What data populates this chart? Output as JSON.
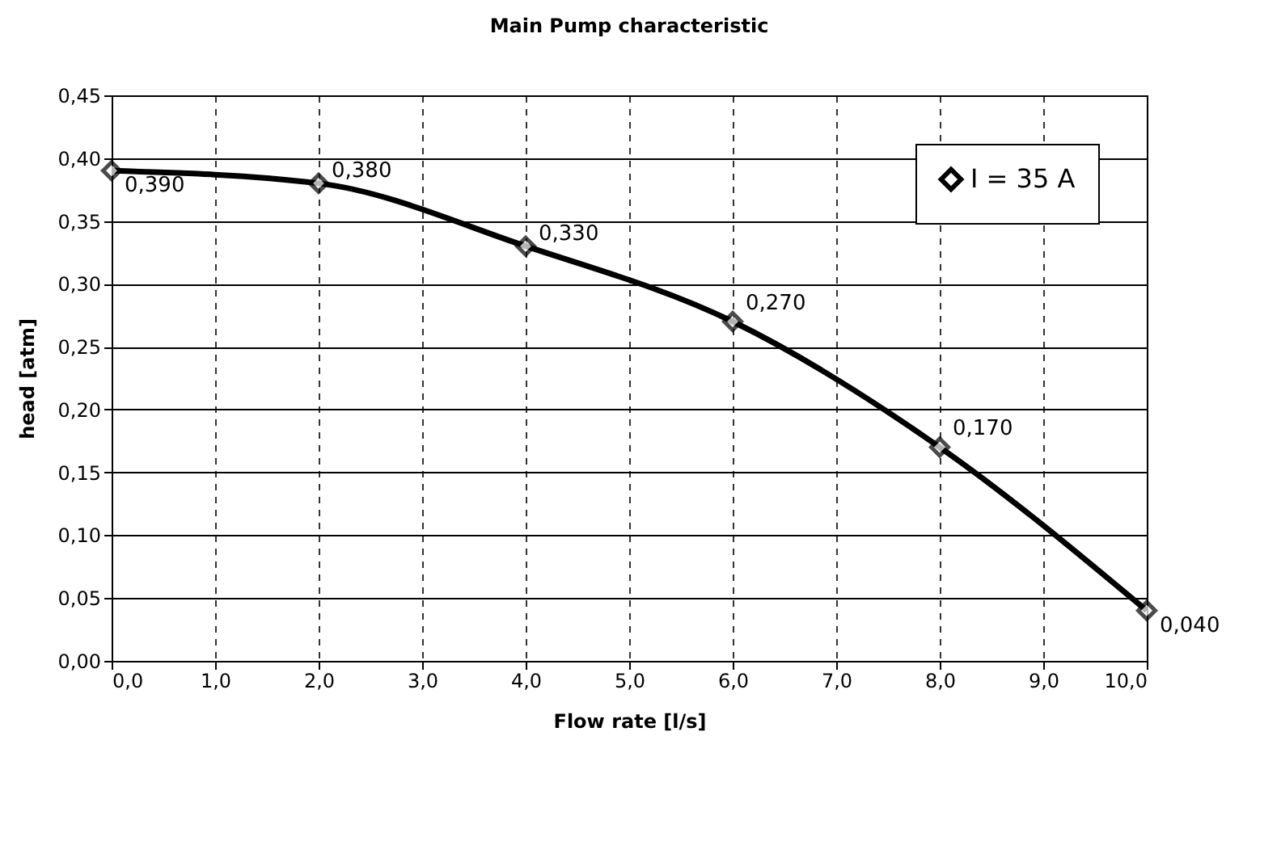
{
  "chart_data": {
    "type": "line",
    "title": "Main Pump characteristic",
    "xlabel": "Flow rate [l/s]",
    "ylabel": "head [atm]",
    "x": [
      0,
      2,
      4,
      6,
      8,
      10
    ],
    "series": [
      {
        "name": "I = 35 A",
        "color": "#000000",
        "values": [
          0.39,
          0.38,
          0.33,
          0.27,
          0.17,
          0.04
        ],
        "value_labels": [
          "0,390",
          "0,380",
          "0,330",
          "0,270",
          "0,170",
          "0,040"
        ]
      }
    ],
    "xlim": [
      0,
      10
    ],
    "xticks": [
      {
        "value": 0,
        "label": "0,0"
      },
      {
        "value": 1,
        "label": "1,0"
      },
      {
        "value": 2,
        "label": "2,0"
      },
      {
        "value": 3,
        "label": "3,0"
      },
      {
        "value": 4,
        "label": "4,0"
      },
      {
        "value": 5,
        "label": "5,0"
      },
      {
        "value": 6,
        "label": "6,0"
      },
      {
        "value": 7,
        "label": "7,0"
      },
      {
        "value": 8,
        "label": "8,0"
      },
      {
        "value": 9,
        "label": "9,0"
      },
      {
        "value": 10,
        "label": "10,0"
      }
    ],
    "ylim": [
      0,
      0.45
    ],
    "yticks": [
      {
        "value": 0,
        "label": "0,00"
      },
      {
        "value": 0.05,
        "label": "0,05"
      },
      {
        "value": 0.1,
        "label": "0,10"
      },
      {
        "value": 0.15,
        "label": "0,15"
      },
      {
        "value": 0.2,
        "label": "0,20"
      },
      {
        "value": 0.25,
        "label": "0,25"
      },
      {
        "value": 0.3,
        "label": "0,30"
      },
      {
        "value": 0.35,
        "label": "0,35"
      },
      {
        "value": 0.4,
        "label": "0,40"
      },
      {
        "value": 0.45,
        "label": "0,45"
      }
    ],
    "grid": true,
    "legend": "top right",
    "marker": "diamond",
    "line_style": "solid"
  }
}
